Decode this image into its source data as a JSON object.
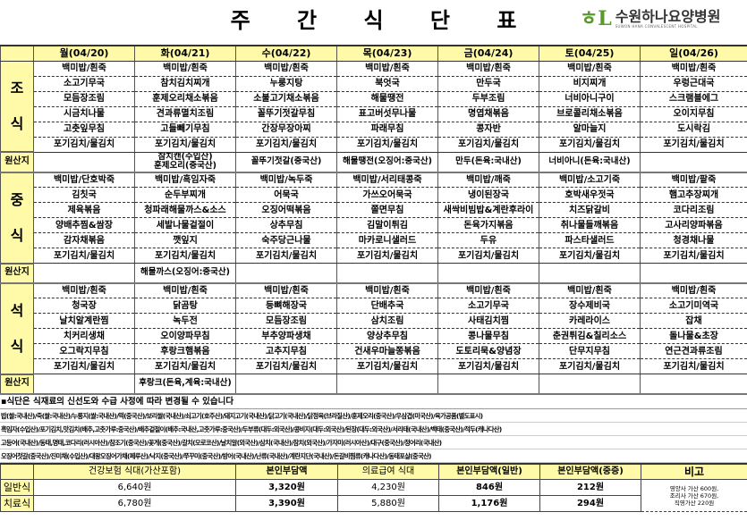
{
  "title": "주 간 식 단 표",
  "logo": {
    "mark": "하나",
    "name": "수원하나요양병원",
    "subtitle": "SUWON HANA CONVALESCENT HOSPITAL"
  },
  "days": [
    "월(04/20)",
    "화(04/21)",
    "수(04/22)",
    "목(04/23)",
    "금(04/24)",
    "토(04/25)",
    "일(04/26)"
  ],
  "origin_label": "원산지",
  "meals": [
    {
      "label": "조 식",
      "rows": [
        [
          "백미밥/흰죽",
          "백미밥/흰죽",
          "백미밥/흰죽",
          "백미밥/흰죽",
          "백미밥/흰죽",
          "백미밥/흰죽",
          "백미밥/흰죽"
        ],
        [
          "소고기무국",
          "참치김치찌개",
          "누룽지탕",
          "북엇국",
          "만두국",
          "비지찌개",
          "우렁근대국"
        ],
        [
          "모듬장조림",
          "훈제오리채소볶음",
          "소불고기채소볶음",
          "해물땡전",
          "두부조림",
          "너비아니구이",
          "스크램블에그"
        ],
        [
          "시금치나물",
          "견과류멸치조림",
          "꼴뚜기젓갈무침",
          "표고버섯무나물",
          "명엽채볶음",
          "브로콜리채소볶음",
          "오이지무침"
        ],
        [
          "고춧잎무침",
          "고들빼기무침",
          "간장무장아찌",
          "파래무침",
          "콩자반",
          "알마늘지",
          "도시락김"
        ],
        [
          "포기김치/물김치",
          "포기김치/물김치",
          "포기김치/물김치",
          "포기김치/물김치",
          "포기김치/물김치",
          "포기김치/물김치",
          "포기김치/물김치"
        ]
      ],
      "origin": [
        "",
        "참치캔(수입산)\n훈제오리(중국산)",
        "꼴뚜기젓갈(중국산)",
        "해물땡전(오징어:중국산)",
        "만두(돈육:국내산)",
        "너비아니(돈육:국내산)",
        ""
      ]
    },
    {
      "label": "중 식",
      "rows": [
        [
          "백미밥/단호박죽",
          "백미밥/흑임자죽",
          "백미밥/녹두죽",
          "백미밥/서리태콩죽",
          "백미밥/깨죽",
          "백미밥/소고기죽",
          "백미밥/팥죽"
        ],
        [
          "김칫국",
          "순두부찌개",
          "어묵국",
          "가쓰오어묵국",
          "냉이된장국",
          "호박새우젓국",
          "햄고추장찌개"
        ],
        [
          "제육볶음",
          "청파래해물까스&소스",
          "오징어떡볶음",
          "쫄면무침",
          "새싹비빔밥&계란후라이",
          "치즈닭갈비",
          "코다리조림"
        ],
        [
          "양배추찜&쌈장",
          "세발나물겉절이",
          "상추무침",
          "김말이튀김",
          "돈육가지볶음",
          "취나물들깨볶음",
          "고사리양파볶음"
        ],
        [
          "감자채볶음",
          "깻잎지",
          "숙주당근나물",
          "마카로니샐러드",
          "두유",
          "파스타샐러드",
          "청경채나물"
        ],
        [
          "포기김치/물김치",
          "포기김치/물김치",
          "포기김치/물김치",
          "포기김치/물김치",
          "포기김치/물김치",
          "포기김치/물김치",
          "포기김치/물김치"
        ]
      ],
      "origin": [
        "",
        "해물까스(오징어:중국산)",
        "",
        "",
        "",
        "",
        ""
      ]
    },
    {
      "label": "석 식",
      "rows": [
        [
          "백미밥/흰죽",
          "백미밥/흰죽",
          "백미밥/흰죽",
          "백미밥/흰죽",
          "백미밥/흰죽",
          "백미밥/흰죽",
          "백미밥/흰죽"
        ],
        [
          "청국장",
          "닭곰탕",
          "등뼈해장국",
          "단배추국",
          "소고기무국",
          "장수제비국",
          "소고기미역국"
        ],
        [
          "날치알계란찜",
          "녹두전",
          "모듬장조림",
          "삼치조림",
          "사태김치찜",
          "카레라이스",
          "잡채"
        ],
        [
          "치커리생채",
          "오이양파무침",
          "부추양파생채",
          "양상추무침",
          "콩나물무침",
          "춘권튀김&칠리소스",
          "돌나물&초장"
        ],
        [
          "오그락지무침",
          "후랑크햄볶음",
          "고추지무침",
          "건새우마늘쫑볶음",
          "도토리묵&양념장",
          "단무지무침",
          "연근견과류조림"
        ],
        [
          "포기김치/물김치",
          "포기김치/물김치",
          "포기김치/물김치",
          "포기김치/물김치",
          "포기김치/물김치",
          "포기김치/물김치",
          "포기김치/물김치"
        ]
      ],
      "origin": [
        "",
        "후랑크(돈육,계육:국내산)",
        "",
        "",
        "",
        "",
        ""
      ]
    }
  ],
  "notes": [
    "▪식단은 식재료의  신선도와 수급 사정에 따라 변경될 수 있습니다",
    "밥(쌀:국내산)/죽(쌀:국내산)/누룽지(쌀:국내산)/떡(중국산)/보리쌀(국내산)/쇠고기(호주산)/돼지고기(국내산)/닭고기(국내산)/닭정육(브라질산)/훈제오리(중국산)/우삼겹(미국산)/육가공품(별도표시)",
    "흑임자(수입산)/포기김치,맛김치(배추,고춧가루:중국산)/배추겉절이(배추:국내산,고춧가루:중국산)/두부류(대두:외국산)/콩비지(대두:외국산)/된장(대두:외국산)/서리태(국내산)/백태(중국산)/적두(캐나다산)",
    "고등어(국내산)/동태,명태,코다리(러시아산)/참조기(중국산)/꽃게(중국산)/갈치(모로코산)/날치알(외국산)/삼치(국내산)/참치(외국산)/가자미(러시아산)/대구(중국산)/정어리(국내산)",
    "오징어젓갈(중국산)/진미채(수입산)/대왕오징어가채(페루산)/낙지(중국산)/쭈꾸미(중국산)/방어(국내산)/난류(국내산)/계란지단(국내산)/돈갈비찜류(캐나다산)/동태포살(중국산)"
  ],
  "cost": {
    "headers": [
      "건강보험 식대(가산포함)",
      "본인부담액",
      "의료급여 식대",
      "본인부담액(일반)",
      "본인부담액(중증)",
      "비고"
    ],
    "rows": [
      {
        "label": "일반식",
        "values": [
          "6,640원",
          "3,320원",
          "4,230원",
          "846원",
          "212원"
        ]
      },
      {
        "label": "치료식",
        "values": [
          "6,780원",
          "3,390원",
          "5,880원",
          "1,176원",
          "294원"
        ]
      }
    ],
    "remark": "영양사 가산 600원,\n조리사 가산 670원,\n직영가산 220원"
  }
}
